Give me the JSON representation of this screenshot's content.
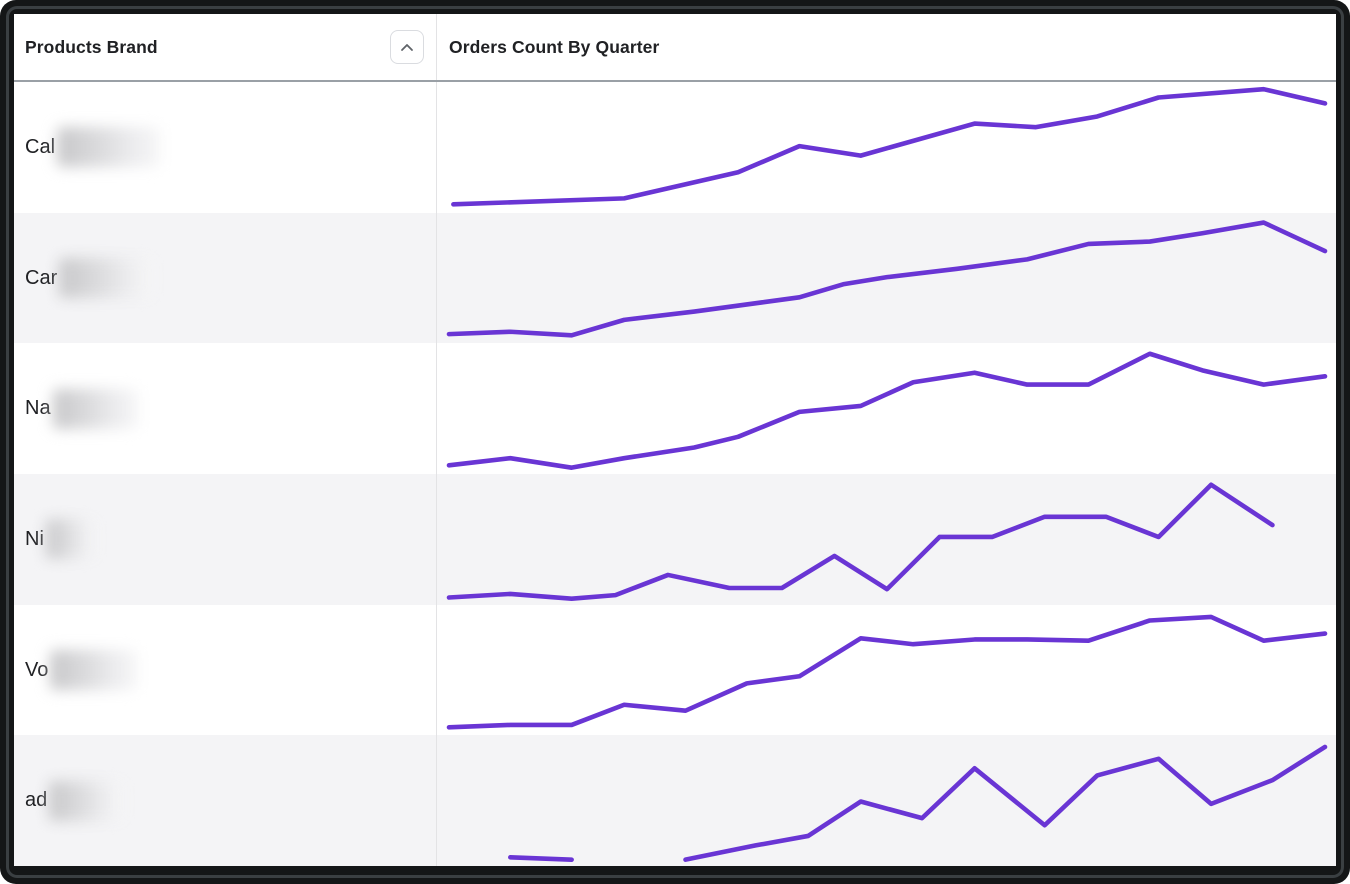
{
  "widget": {
    "kind": "report table with sparklines"
  },
  "colors": {
    "accent_purple": "#6935d4",
    "row_alt_bg": "#f4f4f6",
    "header_rule": "#9aa0a6",
    "column_divider": "#e3e3e5",
    "text": "#202124",
    "frame": "#141617",
    "sort_button_border": "#dadce0",
    "sort_chevron": "#5f6368"
  },
  "table": {
    "columns": [
      {
        "label": "Products Brand",
        "sortable": true,
        "sort_state": "ascending",
        "sort_icon": "chevron-up-icon"
      },
      {
        "label": "Orders Count By Quarter",
        "sortable": false
      }
    ]
  },
  "rows": [
    {
      "label_prefix": "Cal",
      "label_masked": true
    },
    {
      "label_prefix": "Car",
      "label_masked": true
    },
    {
      "label_prefix": "Na",
      "label_masked": true
    },
    {
      "label_prefix": "Ni",
      "label_masked": true
    },
    {
      "label_prefix": "Vo",
      "label_masked": true
    },
    {
      "label_prefix": "ad",
      "label_masked": true
    }
  ],
  "chart_data": {
    "type": "line",
    "title": "Orders Count By Quarter",
    "xlabel": "quarters (tick labels not shown)",
    "ylabel": "orders count (values not labeled; normalized 0-100 per row)",
    "grid": false,
    "legend": "none",
    "series": [
      {
        "name": "Cal (masked)",
        "segments": [
          [
            [
              0.5,
              2
            ],
            [
              20,
              7
            ],
            [
              33,
              29
            ],
            [
              40,
              51
            ],
            [
              47,
              43
            ],
            [
              60,
              70
            ],
            [
              67,
              67
            ],
            [
              74,
              76
            ],
            [
              81,
              92
            ],
            [
              93,
              99
            ],
            [
              100,
              87
            ]
          ]
        ]
      },
      {
        "name": "Car (masked)",
        "segments": [
          [
            [
              0,
              3
            ],
            [
              7,
              5
            ],
            [
              14,
              2
            ],
            [
              20,
              15
            ],
            [
              28,
              22
            ],
            [
              36,
              30
            ],
            [
              40,
              34
            ],
            [
              45,
              45
            ],
            [
              50,
              51
            ],
            [
              58,
              58
            ],
            [
              66,
              66
            ],
            [
              73,
              79
            ],
            [
              80,
              81
            ],
            [
              86,
              88
            ],
            [
              93,
              97
            ],
            [
              100,
              73
            ]
          ]
        ]
      },
      {
        "name": "Na (masked)",
        "segments": [
          [
            [
              0,
              2
            ],
            [
              7,
              8
            ],
            [
              14,
              0
            ],
            [
              20,
              8
            ],
            [
              28,
              17
            ],
            [
              33,
              26
            ],
            [
              40,
              47
            ],
            [
              47,
              52
            ],
            [
              53,
              72
            ],
            [
              60,
              80
            ],
            [
              66,
              70
            ],
            [
              73,
              70
            ],
            [
              80,
              96
            ],
            [
              86,
              82
            ],
            [
              93,
              70
            ],
            [
              100,
              77
            ]
          ]
        ]
      },
      {
        "name": "Ni (masked)",
        "segments": [
          [
            [
              0,
              1
            ],
            [
              7,
              4
            ],
            [
              14,
              0
            ],
            [
              19,
              3
            ],
            [
              25,
              20
            ],
            [
              32,
              9
            ],
            [
              38,
              9
            ],
            [
              44,
              36
            ],
            [
              50,
              8
            ],
            [
              56,
              52
            ],
            [
              62,
              52
            ],
            [
              68,
              69
            ],
            [
              75,
              69
            ],
            [
              81,
              52
            ],
            [
              87,
              96
            ],
            [
              94,
              62
            ]
          ]
        ]
      },
      {
        "name": "Vo (masked)",
        "segments": [
          [
            [
              0,
              2
            ],
            [
              7,
              4
            ],
            [
              14,
              4
            ],
            [
              20,
              21
            ],
            [
              27,
              16
            ],
            [
              34,
              39
            ],
            [
              40,
              45
            ],
            [
              47,
              77
            ],
            [
              53,
              72
            ],
            [
              60,
              76
            ],
            [
              66,
              76
            ],
            [
              73,
              75
            ],
            [
              80,
              92
            ],
            [
              87,
              95
            ],
            [
              93,
              75
            ],
            [
              100,
              81
            ]
          ]
        ]
      },
      {
        "name": "ad (masked)",
        "segments": [
          [
            [
              7,
              2
            ],
            [
              14,
              0
            ]
          ],
          [
            [
              27,
              0
            ],
            [
              35,
              12
            ],
            [
              41,
              20
            ],
            [
              47,
              49
            ],
            [
              54,
              35
            ],
            [
              60,
              77
            ],
            [
              68,
              29
            ],
            [
              74,
              71
            ],
            [
              81,
              85
            ],
            [
              87,
              47
            ],
            [
              94,
              67
            ],
            [
              100,
              95
            ]
          ]
        ]
      }
    ]
  }
}
